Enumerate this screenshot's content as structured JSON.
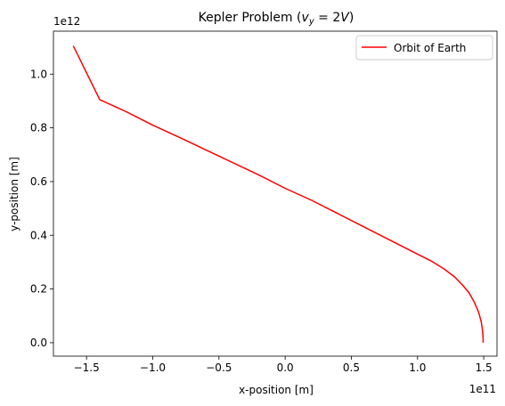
{
  "chart_data": {
    "type": "line",
    "title_main": "Kepler Problem (",
    "title_math_var": "v",
    "title_math_sub": "y",
    "title_math_rest": " = 2",
    "title_math_V": "V",
    "title_close": ")",
    "xlabel": "x-position [m]",
    "ylabel": "y-position [m]",
    "x_offset_label": "1e11",
    "y_offset_label": "1e12",
    "x_scale": 100000000000.0,
    "y_scale": 1000000000000.0,
    "xlim": [
      -1.75,
      1.6
    ],
    "ylim": [
      -0.05,
      1.16
    ],
    "x_ticks": [
      -1.5,
      -1.0,
      -0.5,
      0.0,
      0.5,
      1.0,
      1.5
    ],
    "x_tick_labels": [
      "−1.5",
      "−1.0",
      "−0.5",
      "0.0",
      "0.5",
      "1.0",
      "1.5"
    ],
    "y_ticks": [
      0.0,
      0.2,
      0.4,
      0.6,
      0.8,
      1.0
    ],
    "y_tick_labels": [
      "0.0",
      "0.2",
      "0.4",
      "0.6",
      "0.8",
      "1.0"
    ],
    "grid": false,
    "legend_position": "top-right",
    "series": [
      {
        "name": "Orbit of Earth",
        "color": "#ff0000",
        "x": [
          1.496,
          1.495,
          1.49,
          1.48,
          1.46,
          1.43,
          1.39,
          1.34,
          1.28,
          1.2,
          1.1,
          1.0,
          0.8,
          0.6,
          0.4,
          0.2,
          0.0,
          -0.2,
          -0.5,
          -0.8,
          -1.0,
          -1.2,
          -1.4,
          -1.6
        ],
        "y": [
          0.0,
          0.02,
          0.05,
          0.08,
          0.115,
          0.15,
          0.185,
          0.215,
          0.245,
          0.275,
          0.305,
          0.33,
          0.38,
          0.43,
          0.48,
          0.53,
          0.575,
          0.625,
          0.695,
          0.765,
          0.81,
          0.86,
          0.905,
          1.105
        ]
      }
    ]
  }
}
